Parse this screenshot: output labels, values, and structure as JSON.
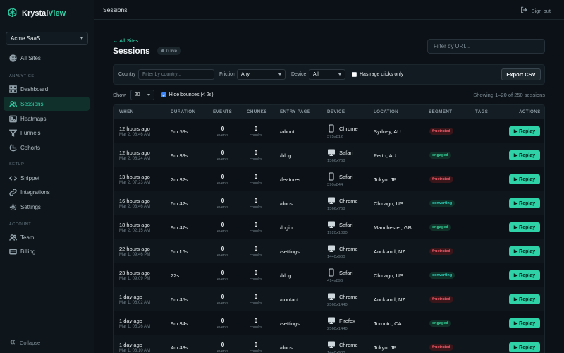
{
  "brand": {
    "name_part1": "Krystal",
    "name_part2": "View"
  },
  "workspace": {
    "selected": "Acme SaaS"
  },
  "sidebar": {
    "all_sites": "All Sites",
    "sections": {
      "analytics": "ANALYTICS",
      "setup": "SETUP",
      "account": "ACCOUNT"
    },
    "items": [
      {
        "label": "Dashboard",
        "icon": "dashboard-icon"
      },
      {
        "label": "Sessions",
        "icon": "users-icon",
        "active": true
      },
      {
        "label": "Heatmaps",
        "icon": "image-icon"
      },
      {
        "label": "Funnels",
        "icon": "funnel-icon"
      },
      {
        "label": "Cohorts",
        "icon": "pie-chart-icon"
      },
      {
        "label": "Snippet",
        "icon": "code-icon"
      },
      {
        "label": "Integrations",
        "icon": "link-icon"
      },
      {
        "label": "Settings",
        "icon": "gear-icon"
      },
      {
        "label": "Team",
        "icon": "team-icon"
      },
      {
        "label": "Billing",
        "icon": "credit-card-icon"
      }
    ],
    "collapse": "Collapse"
  },
  "header": {
    "crumb": "Sessions",
    "signout": "Sign out"
  },
  "page": {
    "back": "← All Sites",
    "title": "Sessions",
    "live": "0 live",
    "uri_placeholder": "Filter by URI..."
  },
  "filters": {
    "country_label": "Country",
    "country_placeholder": "Filter by country...",
    "friction_label": "Friction",
    "friction_value": "Any",
    "device_label": "Device",
    "device_value": "All",
    "rage_label": "Has rage clicks only",
    "export": "Export CSV"
  },
  "list": {
    "show_label": "Show",
    "page_size": "20",
    "hide_bounces": "Hide bounces (< 2s)",
    "showing": "Showing 1–20 of 250 sessions"
  },
  "columns": [
    "WHEN",
    "DURATION",
    "EVENTS",
    "CHUNKS",
    "ENTRY PAGE",
    "DEVICE",
    "LOCATION",
    "SEGMENT",
    "TAGS",
    "ACTIONS"
  ],
  "count_labels": {
    "events": "events",
    "chunks": "chunks"
  },
  "replay_label": "▶ Replay",
  "rows": [
    {
      "when": "12 hours ago",
      "date": "Mar 2, 08:46 AM",
      "duration": "5m 59s",
      "events": "0",
      "chunks": "0",
      "entry": "/about",
      "device_type": "mobile",
      "browser": "Chrome",
      "res": "375x812",
      "location": "Sydney, AU",
      "segment": "frustrated"
    },
    {
      "when": "12 hours ago",
      "date": "Mar 2, 08:24 AM",
      "duration": "9m 39s",
      "events": "0",
      "chunks": "0",
      "entry": "/blog",
      "device_type": "desktop",
      "browser": "Safari",
      "res": "1366x768",
      "location": "Perth, AU",
      "segment": "engaged"
    },
    {
      "when": "13 hours ago",
      "date": "Mar 2, 07:23 AM",
      "duration": "2m 32s",
      "events": "0",
      "chunks": "0",
      "entry": "/features",
      "device_type": "mobile",
      "browser": "Safari",
      "res": "390x844",
      "location": "Tokyo, JP",
      "segment": "frustrated"
    },
    {
      "when": "16 hours ago",
      "date": "Mar 2, 03:46 AM",
      "duration": "6m 42s",
      "events": "0",
      "chunks": "0",
      "entry": "/docs",
      "device_type": "desktop",
      "browser": "Chrome",
      "res": "1366x768",
      "location": "Chicago, US",
      "segment": "converting"
    },
    {
      "when": "18 hours ago",
      "date": "Mar 2, 02:15 AM",
      "duration": "9m 47s",
      "events": "0",
      "chunks": "0",
      "entry": "/login",
      "device_type": "desktop",
      "browser": "Safari",
      "res": "1920x1080",
      "location": "Manchester, GB",
      "segment": "engaged"
    },
    {
      "when": "22 hours ago",
      "date": "Mar 1, 09:46 PM",
      "duration": "5m 16s",
      "events": "0",
      "chunks": "0",
      "entry": "/settings",
      "device_type": "desktop",
      "browser": "Chrome",
      "res": "1440x900",
      "location": "Auckland, NZ",
      "segment": "frustrated"
    },
    {
      "when": "23 hours ago",
      "date": "Mar 1, 09:09 PM",
      "duration": "22s",
      "events": "0",
      "chunks": "0",
      "entry": "/blog",
      "device_type": "mobile",
      "browser": "Safari",
      "res": "414x896",
      "location": "Chicago, US",
      "segment": "converting"
    },
    {
      "when": "1 day ago",
      "date": "Mar 1, 06:02 AM",
      "duration": "6m 45s",
      "events": "0",
      "chunks": "0",
      "entry": "/contact",
      "device_type": "desktop",
      "browser": "Chrome",
      "res": "2560x1440",
      "location": "Auckland, NZ",
      "segment": "frustrated"
    },
    {
      "when": "1 day ago",
      "date": "Mar 1, 05:26 AM",
      "duration": "9m 34s",
      "events": "0",
      "chunks": "0",
      "entry": "/settings",
      "device_type": "desktop",
      "browser": "Firefox",
      "res": "2560x1440",
      "location": "Toronto, CA",
      "segment": "engaged"
    },
    {
      "when": "1 day ago",
      "date": "Mar 1, 03:10 AM",
      "duration": "4m 43s",
      "events": "0",
      "chunks": "0",
      "entry": "/docs",
      "device_type": "desktop",
      "browser": "Chrome",
      "res": "1440x900",
      "location": "Tokyo, JP",
      "segment": "frustrated"
    }
  ]
}
